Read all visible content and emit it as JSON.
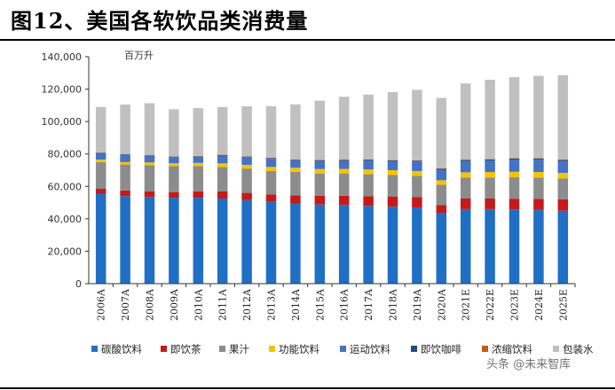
{
  "header": {
    "title": "图12、美国各软饮品类消费量"
  },
  "watermark": "头条 @未来智库",
  "chart_data": {
    "type": "bar",
    "stacked": true,
    "unit_label": "百万升",
    "categories": [
      "2006A",
      "2007A",
      "2008A",
      "2009A",
      "2010A",
      "2011A",
      "2012A",
      "2013A",
      "2014A",
      "2015A",
      "2016A",
      "2017A",
      "2018A",
      "2019A",
      "2020A",
      "2021E",
      "2022E",
      "2023E",
      "2024E",
      "2025E"
    ],
    "ylim": [
      0,
      140000
    ],
    "yticks": [
      0,
      20000,
      40000,
      60000,
      80000,
      100000,
      120000,
      140000
    ],
    "ytick_labels": [
      "0",
      "20,000",
      "40,000",
      "60,000",
      "80,000",
      "100,000",
      "120,000",
      "140,000"
    ],
    "legend_position": "bottom",
    "series": [
      {
        "name": "碳酸饮料",
        "color": "#1f6fc5",
        "values": [
          55500,
          54000,
          53500,
          53000,
          53000,
          52500,
          51500,
          50500,
          49500,
          48800,
          48500,
          48000,
          47500,
          47000,
          43500,
          46000,
          46000,
          45800,
          45500,
          45000
        ]
      },
      {
        "name": "即饮茶",
        "color": "#c41a1a",
        "values": [
          3000,
          3500,
          3500,
          3500,
          4000,
          4500,
          4500,
          4500,
          5000,
          5500,
          5700,
          6000,
          6300,
          6500,
          5000,
          6500,
          6500,
          6600,
          6700,
          7000
        ]
      },
      {
        "name": "果汁",
        "color": "#8c8c8c",
        "values": [
          16500,
          16000,
          16000,
          16000,
          15500,
          15000,
          15000,
          14500,
          14500,
          13700,
          13800,
          13500,
          13200,
          13000,
          12500,
          13000,
          13000,
          13200,
          13200,
          12800
        ]
      },
      {
        "name": "功能饮料",
        "color": "#f5c400",
        "values": [
          1500,
          1500,
          1800,
          1800,
          2000,
          2200,
          2300,
          2500,
          2500,
          2700,
          2800,
          3000,
          3000,
          3000,
          2800,
          3200,
          3400,
          3400,
          3500,
          3500
        ]
      },
      {
        "name": "运动饮料",
        "color": "#4472c4",
        "values": [
          4000,
          4500,
          4000,
          3800,
          3800,
          4800,
          4700,
          5000,
          4500,
          5000,
          5000,
          5500,
          5500,
          5800,
          6500,
          7000,
          7100,
          7500,
          7600,
          7400
        ]
      },
      {
        "name": "即饮咖啡",
        "color": "#1f4e79",
        "values": [
          300,
          300,
          300,
          300,
          300,
          300,
          400,
          400,
          400,
          500,
          500,
          500,
          500,
          600,
          600,
          600,
          600,
          700,
          700,
          700
        ]
      },
      {
        "name": "浓缩饮料",
        "color": "#c55a11",
        "values": [
          200,
          200,
          200,
          200,
          200,
          200,
          200,
          200,
          200,
          200,
          200,
          200,
          200,
          200,
          200,
          200,
          200,
          200,
          200,
          200
        ]
      },
      {
        "name": "包装水",
        "color": "#c0c0c0",
        "values": [
          28000,
          30500,
          32000,
          29000,
          29500,
          29500,
          30800,
          31900,
          34000,
          36500,
          38800,
          40000,
          42000,
          43500,
          43500,
          47000,
          49000,
          50000,
          50800,
          52000
        ]
      }
    ]
  }
}
